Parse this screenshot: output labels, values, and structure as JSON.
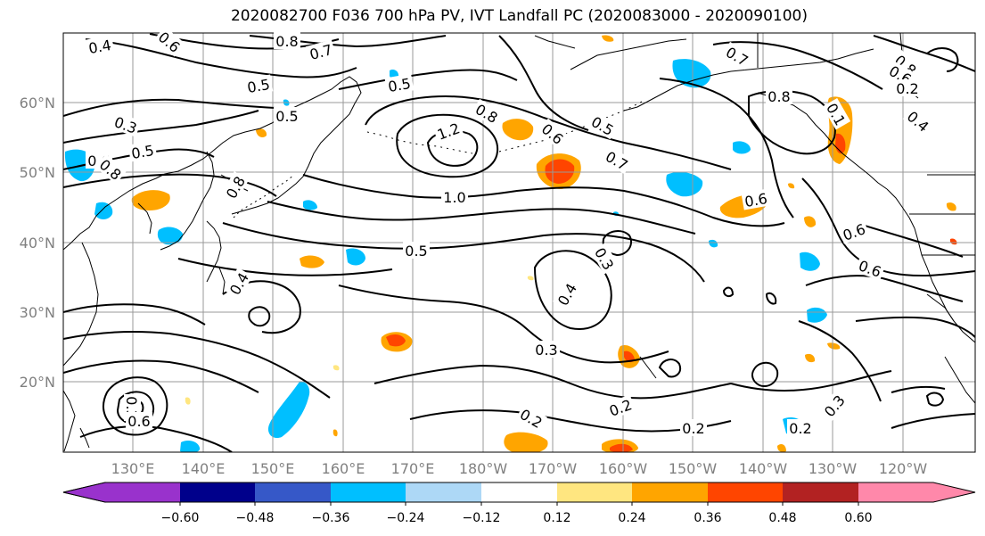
{
  "title": "2020082700 F036 700 hPa PV, IVT Landfall PC (2020083000 - 2020090100)",
  "lat_labels": [
    "60°N",
    "50°N",
    "40°N",
    "30°N",
    "20°N"
  ],
  "lon_labels": [
    "130°E",
    "140°E",
    "150°E",
    "160°E",
    "170°E",
    "180°W",
    "170°W",
    "160°W",
    "150°W",
    "140°W",
    "130°W",
    "120°W"
  ],
  "colorbar": {
    "colors": [
      "#9932cc",
      "#00008b",
      "#3658c8",
      "#00bfff",
      "#add8f6",
      "#ffffff",
      "#ffe680",
      "#ffa500",
      "#ff4500",
      "#b22222",
      "#ff88aa"
    ],
    "tick_labels": [
      "−0.60",
      "−0.48",
      "−0.36",
      "−0.24",
      "−0.12",
      "0.12",
      "0.24",
      "0.36",
      "0.48",
      "0.60"
    ]
  },
  "contour_labels": [
    {
      "t": "0.4"
    },
    {
      "t": "0.6"
    },
    {
      "t": "0.8"
    },
    {
      "t": "0.7"
    },
    {
      "t": "0.5"
    },
    {
      "t": "0.5"
    },
    {
      "t": "0.5"
    },
    {
      "t": "0.3"
    },
    {
      "t": "0.5"
    },
    {
      "t": "0.6"
    },
    {
      "t": "0.8"
    },
    {
      "t": "0.8"
    },
    {
      "t": "1.2"
    },
    {
      "t": "0.8"
    },
    {
      "t": "0.6"
    },
    {
      "t": "0.5"
    },
    {
      "t": "0.7"
    },
    {
      "t": "0.7"
    },
    {
      "t": "0.8"
    },
    {
      "t": "0.1"
    },
    {
      "t": "0.4"
    },
    {
      "t": "0.8"
    },
    {
      "t": "0.6"
    },
    {
      "t": "1.0"
    },
    {
      "t": "0.6"
    },
    {
      "t": "0.5"
    },
    {
      "t": "0.3"
    },
    {
      "t": "0.6"
    },
    {
      "t": "0.6"
    },
    {
      "t": "0.4"
    },
    {
      "t": "0.4"
    },
    {
      "t": "0.3"
    },
    {
      "t": "0.2"
    },
    {
      "t": "0.3"
    },
    {
      "t": "0.2"
    },
    {
      "t": "0.2"
    },
    {
      "t": "0.6"
    },
    {
      "t": "0.3"
    },
    {
      "t": "0.2"
    },
    {
      "t": "0.2"
    }
  ]
}
